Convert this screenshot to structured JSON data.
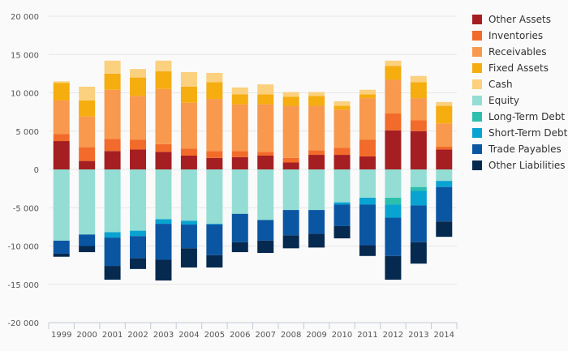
{
  "chart_data": {
    "type": "bar",
    "stacked": true,
    "categories": [
      "1999",
      "2000",
      "2001",
      "2002",
      "2003",
      "2004",
      "2005",
      "2006",
      "2007",
      "2008",
      "2009",
      "2010",
      "2011",
      "2012",
      "2013",
      "2014"
    ],
    "ylim": [
      -20000,
      20000
    ],
    "yticks": [
      -20000,
      -15000,
      -10000,
      -5000,
      0,
      5000,
      10000,
      15000,
      20000
    ],
    "ytick_labels": [
      "-20 000",
      "-15 000",
      "-10 000",
      "-5 000",
      "0",
      "5 000",
      "10 000",
      "15 000",
      "20 000"
    ],
    "grid": true,
    "legend_position": "right",
    "series": [
      {
        "name": "Other Assets",
        "color": "#a51e22",
        "values": [
          3700,
          1100,
          2400,
          2600,
          2300,
          1800,
          1500,
          1600,
          1800,
          900,
          1900,
          1900,
          1700,
          5100,
          5000,
          2600
        ]
      },
      {
        "name": "Inventories",
        "color": "#f26b2a",
        "values": [
          900,
          1800,
          1600,
          1300,
          1000,
          900,
          900,
          800,
          500,
          600,
          600,
          900,
          2200,
          2200,
          1400,
          400
        ]
      },
      {
        "name": "Receivables",
        "color": "#f8994e",
        "values": [
          4400,
          4000,
          6400,
          5700,
          7200,
          6000,
          6800,
          6100,
          6200,
          6800,
          5800,
          5000,
          5400,
          4400,
          2900,
          3000
        ]
      },
      {
        "name": "Fixed Assets",
        "color": "#f5ad10",
        "values": [
          2300,
          2100,
          2100,
          2400,
          2300,
          2100,
          2200,
          1300,
          1300,
          1200,
          1300,
          500,
          500,
          1800,
          2100,
          2300
        ]
      },
      {
        "name": "Cash",
        "color": "#fbd07e",
        "values": [
          200,
          1800,
          1700,
          1100,
          1400,
          1900,
          1200,
          900,
          1300,
          600,
          500,
          600,
          600,
          700,
          800,
          500
        ]
      },
      {
        "name": "Equity",
        "color": "#93ddd4",
        "values": [
          -9300,
          -8500,
          -8200,
          -8000,
          -6500,
          -6700,
          -7100,
          -5800,
          -6600,
          -5300,
          -5300,
          -4300,
          -3700,
          -3700,
          -2300,
          -1500
        ]
      },
      {
        "name": "Long-Term Debt",
        "color": "#2cbfae",
        "values": [
          0,
          0,
          0,
          0,
          0,
          0,
          0,
          0,
          0,
          0,
          0,
          0,
          0,
          -900,
          -500,
          0
        ]
      },
      {
        "name": "Short-Term Debt",
        "color": "#09a3d1",
        "values": [
          0,
          0,
          -700,
          -700,
          -600,
          -500,
          -100,
          0,
          0,
          0,
          0,
          -300,
          -900,
          -1700,
          -1900,
          -800
        ]
      },
      {
        "name": "Trade Payables",
        "color": "#0b56a3",
        "values": [
          -1700,
          -1500,
          -3700,
          -2900,
          -4700,
          -3100,
          -4000,
          -3700,
          -2700,
          -3300,
          -3100,
          -2800,
          -5300,
          -5000,
          -4800,
          -4500
        ]
      },
      {
        "name": "Other Liabilities",
        "color": "#06294f",
        "values": [
          -400,
          -800,
          -1800,
          -1400,
          -2700,
          -2500,
          -1600,
          -1300,
          -1600,
          -1700,
          -1800,
          -1600,
          -1400,
          -3100,
          -2800,
          -2000
        ]
      }
    ]
  }
}
